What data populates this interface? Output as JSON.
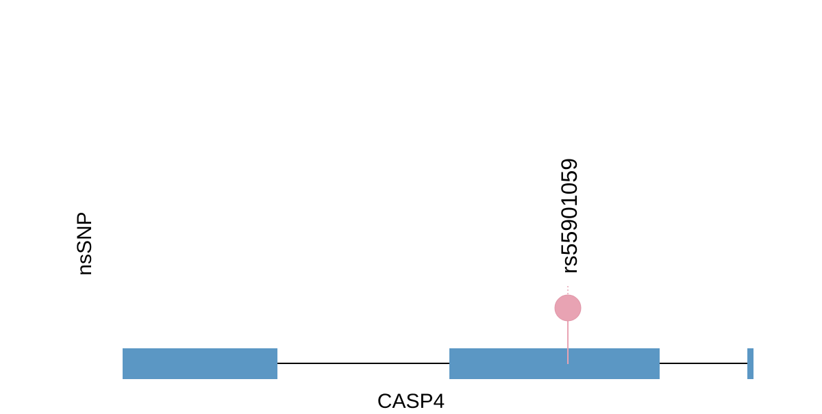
{
  "track_label": "nsSNP",
  "gene": {
    "name": "CASP4"
  },
  "snps": [
    {
      "label": "rs55901059"
    }
  ]
}
